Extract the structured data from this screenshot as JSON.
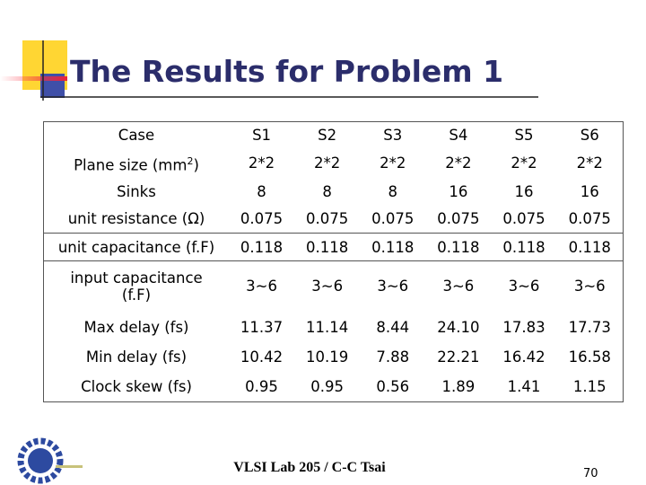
{
  "header": {
    "title": "The Results for Problem 1"
  },
  "table": {
    "columns": [
      "Case",
      "S1",
      "S2",
      "S3",
      "S4",
      "S5",
      "S6"
    ],
    "rows": [
      [
        {
          "text": "Plane size (mm",
          "sup": "2",
          "tail": ")"
        },
        "2*2",
        "2*2",
        "2*2",
        "2*2",
        "2*2",
        "2*2"
      ],
      [
        "Sinks",
        "8",
        "8",
        "8",
        "16",
        "16",
        "16"
      ],
      [
        "unit resistance (Ω)",
        "0.075",
        "0.075",
        "0.075",
        "0.075",
        "0.075",
        "0.075"
      ],
      [
        "unit capacitance (f.F)",
        "0.118",
        "0.118",
        "0.118",
        "0.118",
        "0.118",
        "0.118"
      ],
      [
        [
          "input capacitance",
          "(f.F)"
        ],
        "3~6",
        "3~6",
        "3~6",
        "3~6",
        "3~6",
        "3~6"
      ],
      [
        "Max delay (fs)",
        "11.37",
        "11.14",
        "8.44",
        "24.10",
        "17.83",
        "17.73"
      ],
      [
        "Min delay (fs)",
        "10.42",
        "10.19",
        "7.88",
        "22.21",
        "16.42",
        "16.58"
      ],
      [
        "Clock skew (fs)",
        "0.95",
        "0.95",
        "0.56",
        "1.89",
        "1.41",
        "1.15"
      ]
    ]
  },
  "footer": {
    "text": "VLSI Lab 205 / C-C Tsai",
    "page": "70"
  }
}
